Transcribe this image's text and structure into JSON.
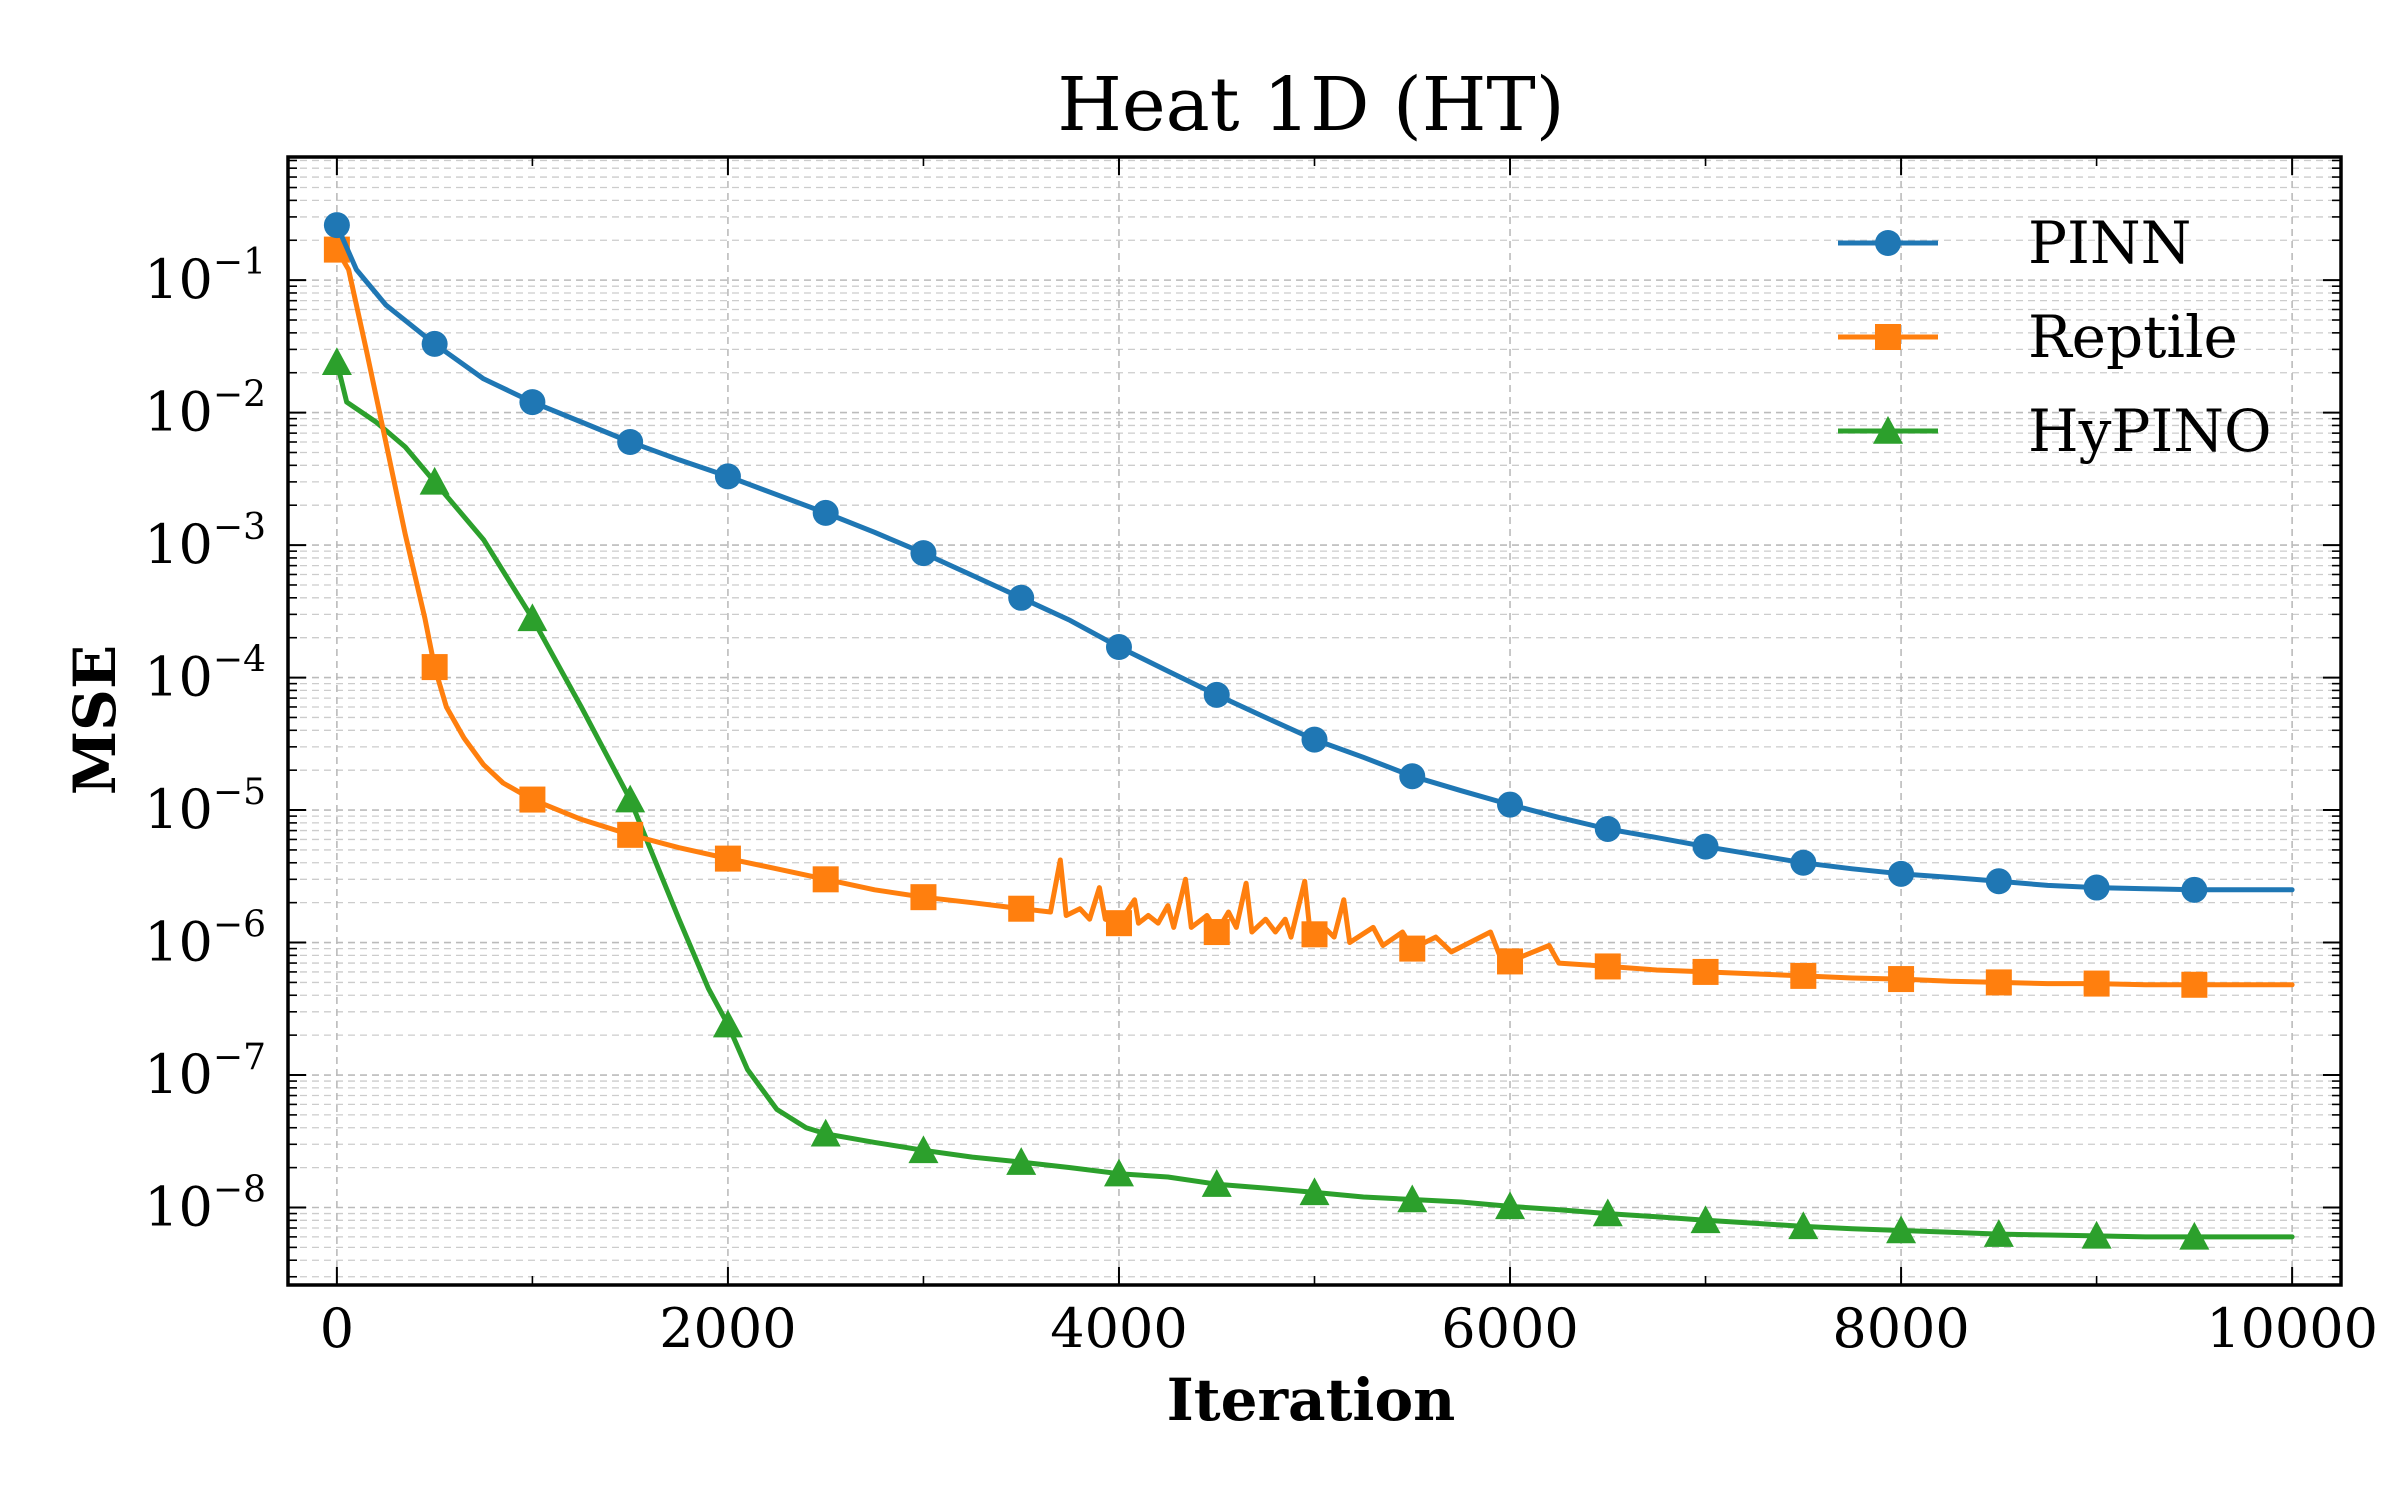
{
  "chart_data": {
    "type": "line",
    "title": "Heat 1D (HT)",
    "xlabel": "Iteration",
    "ylabel": "MSE",
    "xlim": [
      -250,
      10250
    ],
    "ylim": [
      2.6e-09,
      0.85
    ],
    "yscale": "log",
    "grid": true,
    "legend_position": "top-right",
    "x_ticks": [
      0,
      2000,
      4000,
      6000,
      8000,
      10000
    ],
    "x_tick_labels": [
      "0",
      "2000",
      "4000",
      "6000",
      "8000",
      "10000"
    ],
    "y_ticks": [
      {
        "value": 0.1,
        "base": "10",
        "exp": "−1"
      },
      {
        "value": 0.01,
        "base": "10",
        "exp": "−2"
      },
      {
        "value": 0.001,
        "base": "10",
        "exp": "−3"
      },
      {
        "value": 0.0001,
        "base": "10",
        "exp": "−4"
      },
      {
        "value": 1e-05,
        "base": "10",
        "exp": "−5"
      },
      {
        "value": 1e-06,
        "base": "10",
        "exp": "−6"
      },
      {
        "value": 1e-07,
        "base": "10",
        "exp": "−7"
      },
      {
        "value": 1e-08,
        "base": "10",
        "exp": "−8"
      }
    ],
    "series": [
      {
        "name": "PINN",
        "color": "#1f77b4",
        "marker": "circle",
        "marker_x": [
          0,
          500,
          1000,
          1500,
          2000,
          2500,
          3000,
          3500,
          4000,
          4500,
          5000,
          5500,
          6000,
          6500,
          7000,
          7500,
          8000,
          8500,
          9000,
          9500
        ],
        "line": [
          [
            0,
            0.26
          ],
          [
            100,
            0.12
          ],
          [
            250,
            0.065
          ],
          [
            500,
            0.033
          ],
          [
            750,
            0.018
          ],
          [
            1000,
            0.012
          ],
          [
            1250,
            0.0085
          ],
          [
            1500,
            0.006
          ],
          [
            1750,
            0.0044
          ],
          [
            2000,
            0.0033
          ],
          [
            2250,
            0.0024
          ],
          [
            2500,
            0.00175
          ],
          [
            2750,
            0.00125
          ],
          [
            3000,
            0.00087
          ],
          [
            3250,
            0.00059
          ],
          [
            3500,
            0.0004
          ],
          [
            3750,
            0.00027
          ],
          [
            4000,
            0.00017
          ],
          [
            4250,
            0.000112
          ],
          [
            4500,
            7.4e-05
          ],
          [
            4750,
            5e-05
          ],
          [
            5000,
            3.4e-05
          ],
          [
            5250,
            2.5e-05
          ],
          [
            5500,
            1.8e-05
          ],
          [
            5750,
            1.4e-05
          ],
          [
            6000,
            1.1e-05
          ],
          [
            6250,
            8.8e-06
          ],
          [
            6500,
            7.2e-06
          ],
          [
            6750,
            6.2e-06
          ],
          [
            7000,
            5.3e-06
          ],
          [
            7250,
            4.6e-06
          ],
          [
            7500,
            4e-06
          ],
          [
            7750,
            3.6e-06
          ],
          [
            8000,
            3.3e-06
          ],
          [
            8250,
            3.1e-06
          ],
          [
            8500,
            2.9e-06
          ],
          [
            8750,
            2.7e-06
          ],
          [
            9000,
            2.6e-06
          ],
          [
            9250,
            2.55e-06
          ],
          [
            9500,
            2.5e-06
          ],
          [
            10000,
            2.5e-06
          ]
        ]
      },
      {
        "name": "Reptile",
        "color": "#ff7f0e",
        "marker": "square",
        "marker_x": [
          0,
          500,
          1000,
          1500,
          2000,
          2500,
          3000,
          3500,
          4000,
          4500,
          5000,
          5500,
          6000,
          6500,
          7000,
          7500,
          8000,
          8500,
          9000,
          9500
        ],
        "line": [
          [
            0,
            0.17
          ],
          [
            60,
            0.12
          ],
          [
            150,
            0.03
          ],
          [
            250,
            0.006
          ],
          [
            350,
            0.0012
          ],
          [
            450,
            0.00028
          ],
          [
            500,
            0.00012
          ],
          [
            560,
            6e-05
          ],
          [
            650,
            3.5e-05
          ],
          [
            750,
            2.2e-05
          ],
          [
            850,
            1.6e-05
          ],
          [
            1000,
            1.2e-05
          ],
          [
            1250,
            8.5e-06
          ],
          [
            1500,
            6.5e-06
          ],
          [
            1750,
            5.2e-06
          ],
          [
            2000,
            4.3e-06
          ],
          [
            2250,
            3.6e-06
          ],
          [
            2500,
            3e-06
          ],
          [
            2750,
            2.5e-06
          ],
          [
            3000,
            2.2e-06
          ],
          [
            3250,
            2e-06
          ],
          [
            3500,
            1.8e-06
          ],
          [
            3650,
            1.7e-06
          ],
          [
            3700,
            4.2e-06
          ],
          [
            3730,
            1.6e-06
          ],
          [
            3800,
            1.8e-06
          ],
          [
            3850,
            1.5e-06
          ],
          [
            3900,
            2.6e-06
          ],
          [
            3930,
            1.5e-06
          ],
          [
            4000,
            1.4e-06
          ],
          [
            4080,
            2.1e-06
          ],
          [
            4100,
            1.4e-06
          ],
          [
            4150,
            1.6e-06
          ],
          [
            4200,
            1.4e-06
          ],
          [
            4250,
            1.9e-06
          ],
          [
            4280,
            1.3e-06
          ],
          [
            4340,
            3e-06
          ],
          [
            4370,
            1.3e-06
          ],
          [
            4450,
            1.6e-06
          ],
          [
            4500,
            1.2e-06
          ],
          [
            4560,
            1.7e-06
          ],
          [
            4600,
            1.3e-06
          ],
          [
            4650,
            2.8e-06
          ],
          [
            4680,
            1.2e-06
          ],
          [
            4750,
            1.5e-06
          ],
          [
            4800,
            1.2e-06
          ],
          [
            4850,
            1.5e-06
          ],
          [
            4880,
            1.1e-06
          ],
          [
            4950,
            2.9e-06
          ],
          [
            4980,
            1.1e-06
          ],
          [
            5050,
            1.3e-06
          ],
          [
            5100,
            1.1e-06
          ],
          [
            5150,
            2.1e-06
          ],
          [
            5180,
            1e-06
          ],
          [
            5300,
            1.3e-06
          ],
          [
            5350,
            9.5e-07
          ],
          [
            5450,
            1.2e-06
          ],
          [
            5500,
            9e-07
          ],
          [
            5620,
            1.1e-06
          ],
          [
            5700,
            8.5e-07
          ],
          [
            5900,
            1.2e-06
          ],
          [
            5950,
            7.8e-07
          ],
          [
            6000,
            7.2e-07
          ],
          [
            6200,
            9.5e-07
          ],
          [
            6250,
            7e-07
          ],
          [
            6500,
            6.6e-07
          ],
          [
            6750,
            6.2e-07
          ],
          [
            7000,
            6e-07
          ],
          [
            7250,
            5.8e-07
          ],
          [
            7500,
            5.6e-07
          ],
          [
            7750,
            5.4e-07
          ],
          [
            8000,
            5.3e-07
          ],
          [
            8250,
            5.1e-07
          ],
          [
            8500,
            5e-07
          ],
          [
            8750,
            4.9e-07
          ],
          [
            9000,
            4.9e-07
          ],
          [
            9250,
            4.8e-07
          ],
          [
            9500,
            4.8e-07
          ],
          [
            10000,
            4.8e-07
          ]
        ]
      },
      {
        "name": "HyPINO",
        "color": "#2ca02c",
        "marker": "triangle",
        "marker_x": [
          0,
          500,
          1000,
          1500,
          2000,
          2500,
          3000,
          3500,
          4000,
          4500,
          5000,
          5500,
          6000,
          6500,
          7000,
          7500,
          8000,
          8500,
          9000,
          9500
        ],
        "line": [
          [
            0,
            0.024
          ],
          [
            50,
            0.012
          ],
          [
            200,
            0.0085
          ],
          [
            350,
            0.0055
          ],
          [
            500,
            0.003
          ],
          [
            750,
            0.0011
          ],
          [
            1000,
            0.00028
          ],
          [
            1250,
            6e-05
          ],
          [
            1500,
            1.2e-05
          ],
          [
            1750,
            1.5e-06
          ],
          [
            1900,
            4.5e-07
          ],
          [
            2000,
            2.4e-07
          ],
          [
            2100,
            1.1e-07
          ],
          [
            2250,
            5.5e-08
          ],
          [
            2400,
            4e-08
          ],
          [
            2500,
            3.6e-08
          ],
          [
            2750,
            3.1e-08
          ],
          [
            3000,
            2.7e-08
          ],
          [
            3250,
            2.4e-08
          ],
          [
            3500,
            2.2e-08
          ],
          [
            3750,
            2e-08
          ],
          [
            4000,
            1.8e-08
          ],
          [
            4250,
            1.7e-08
          ],
          [
            4500,
            1.5e-08
          ],
          [
            4750,
            1.4e-08
          ],
          [
            5000,
            1.3e-08
          ],
          [
            5250,
            1.2e-08
          ],
          [
            5500,
            1.15e-08
          ],
          [
            5750,
            1.1e-08
          ],
          [
            6000,
            1.02e-08
          ],
          [
            6250,
            9.6e-09
          ],
          [
            6500,
            9e-09
          ],
          [
            6750,
            8.5e-09
          ],
          [
            7000,
            8e-09
          ],
          [
            7250,
            7.6e-09
          ],
          [
            7500,
            7.2e-09
          ],
          [
            7750,
            6.9e-09
          ],
          [
            8000,
            6.7e-09
          ],
          [
            8250,
            6.5e-09
          ],
          [
            8500,
            6.3e-09
          ],
          [
            8750,
            6.2e-09
          ],
          [
            9000,
            6.1e-09
          ],
          [
            9250,
            6e-09
          ],
          [
            9500,
            6e-09
          ],
          [
            10000,
            6e-09
          ]
        ]
      }
    ]
  }
}
